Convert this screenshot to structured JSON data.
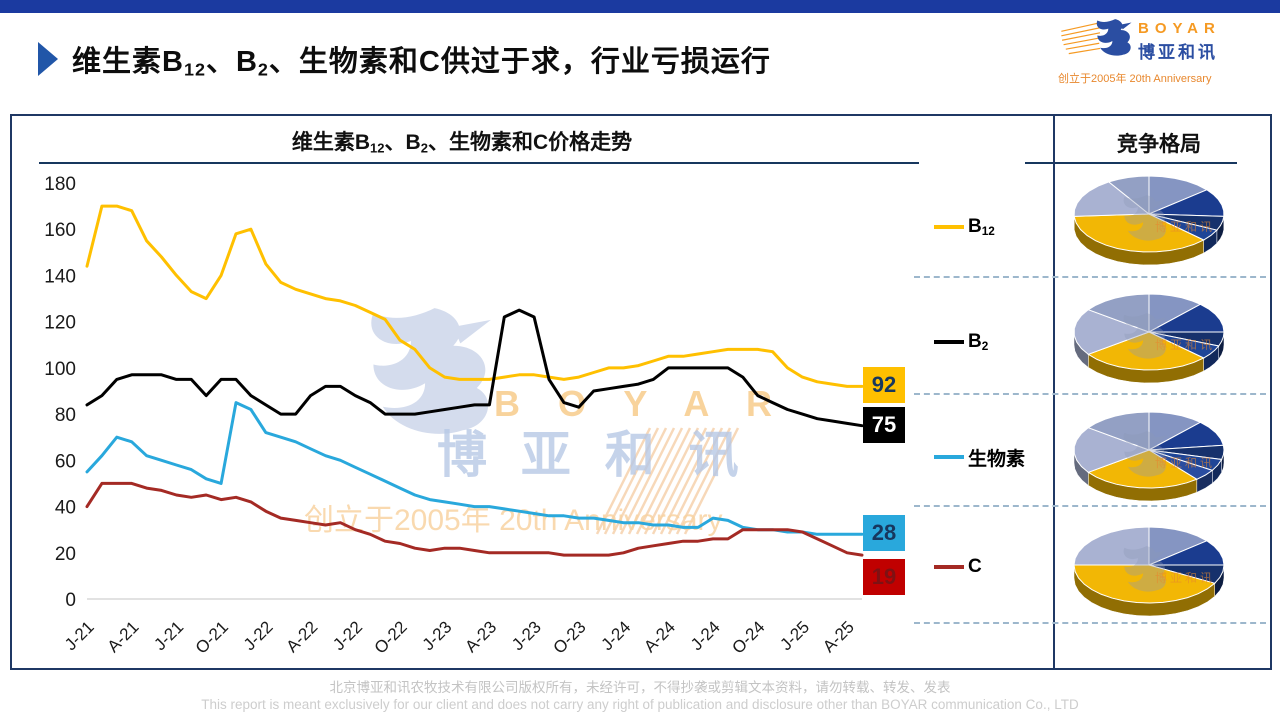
{
  "header": {
    "title_rich": [
      {
        "text": "维生素B"
      },
      {
        "sub": "12"
      },
      {
        "text": "、B"
      },
      {
        "sub": "2"
      },
      {
        "text": "、生物素和C供过于求，行业亏损运行"
      }
    ],
    "logo": {
      "brand_en": "BOYAR",
      "brand_cn": "博亚和讯",
      "anniversary": "创立于2005年 20th Anniversary"
    }
  },
  "panel": {
    "chart_title_rich": [
      {
        "text": "维生素B"
      },
      {
        "sub": "12"
      },
      {
        "text": "、B"
      },
      {
        "sub": "2"
      },
      {
        "text": "、生物素和C价格走势"
      }
    ],
    "competition_title": "竞争格局"
  },
  "legend": [
    {
      "rich": [
        {
          "text": "B"
        },
        {
          "sub": "12"
        }
      ],
      "color": "#FFC000"
    },
    {
      "rich": [
        {
          "text": "B"
        },
        {
          "sub": "2"
        }
      ],
      "color": "#000000"
    },
    {
      "rich": [
        {
          "text": "生物素"
        }
      ],
      "color": "#29A8DC"
    },
    {
      "rich": [
        {
          "text": "C"
        }
      ],
      "color": "#A42A24"
    }
  ],
  "watermark": {
    "brand_en": "B O Y A R",
    "brand_cn": "博 亚 和 讯",
    "anniversary": "创立于2005年 20th Anniversary",
    "pie_mark": "博亚和讯"
  },
  "footer": {
    "line1": "北京博亚和讯农牧技术有限公司版权所有，未经许可，不得抄袭或剪辑文本资料，请勿转载、转发、发表",
    "line2": "This report is meant exclusively for our client and does not carry any right of publication and disclosure other than BOYAR communication Co., LTD"
  },
  "colors": {
    "top_bar": "#1B3AA0",
    "panel_border": "#1F3864",
    "separator_dashed": "#9DB7CC",
    "axis_line": "#D9D9D9"
  },
  "chart_data": [
    {
      "type": "line",
      "title": "维生素B12、B2、生物素和C价格走势",
      "xlabel": "",
      "ylabel": "",
      "ylim": [
        0,
        180
      ],
      "y_ticks": [
        0,
        20,
        40,
        60,
        80,
        100,
        120,
        140,
        160,
        180
      ],
      "x_tick_labels": [
        "J-21",
        "A-21",
        "J-21",
        "O-21",
        "J-22",
        "A-22",
        "J-22",
        "O-22",
        "J-23",
        "A-23",
        "J-23",
        "O-23",
        "J-24",
        "A-24",
        "J-24",
        "O-24",
        "J-25",
        "A-25"
      ],
      "x_note": "monthly points Jan-2021 .. May-2025, ticks every 3 months",
      "grid": false,
      "legend_position": "right",
      "series": [
        {
          "name": "B12",
          "color": "#FFC000",
          "end_label": "92",
          "label_bg": "#FFC000",
          "label_fg": "#17375E",
          "values": [
            144,
            170,
            170,
            168,
            155,
            148,
            140,
            133,
            130,
            140,
            158,
            160,
            145,
            137,
            134,
            132,
            130,
            129,
            127,
            124,
            121,
            112,
            108,
            100,
            96,
            95,
            95,
            95,
            96,
            97,
            97,
            96,
            95,
            96,
            98,
            100,
            100,
            101,
            103,
            105,
            105,
            106,
            107,
            108,
            108,
            108,
            107,
            100,
            96,
            94,
            93,
            92,
            92
          ]
        },
        {
          "name": "B2",
          "color": "#000000",
          "end_label": "75",
          "label_bg": "#000000",
          "label_fg": "#FFFFFF",
          "values": [
            84,
            88,
            95,
            97,
            97,
            97,
            95,
            95,
            88,
            95,
            95,
            88,
            84,
            80,
            80,
            88,
            92,
            92,
            88,
            85,
            80,
            80,
            80,
            81,
            82,
            83,
            84,
            84,
            122,
            125,
            122,
            95,
            85,
            83,
            90,
            91,
            92,
            93,
            95,
            100,
            100,
            100,
            100,
            100,
            96,
            88,
            85,
            82,
            80,
            78,
            77,
            76,
            75
          ]
        },
        {
          "name": "生物素",
          "color": "#29A8DC",
          "end_label": "28",
          "label_bg": "#29A8DC",
          "label_fg": "#17375E",
          "values": [
            55,
            62,
            70,
            68,
            62,
            60,
            58,
            56,
            52,
            50,
            85,
            82,
            72,
            70,
            68,
            65,
            62,
            60,
            57,
            54,
            51,
            48,
            45,
            43,
            42,
            41,
            40,
            40,
            39,
            38,
            37,
            36,
            36,
            35,
            35,
            34,
            33,
            33,
            32,
            32,
            31,
            31,
            35,
            34,
            31,
            30,
            30,
            29,
            29,
            28,
            28,
            28,
            28
          ]
        },
        {
          "name": "C",
          "color": "#A42A24",
          "end_label": "19",
          "label_bg": "#C00000",
          "label_fg": "#7E1113",
          "values": [
            40,
            50,
            50,
            50,
            48,
            47,
            45,
            44,
            45,
            43,
            44,
            42,
            38,
            35,
            34,
            33,
            32,
            33,
            30,
            28,
            25,
            24,
            22,
            21,
            22,
            22,
            21,
            20,
            20,
            20,
            20,
            20,
            19,
            19,
            19,
            19,
            20,
            22,
            23,
            24,
            25,
            25,
            26,
            26,
            30,
            30,
            30,
            30,
            29,
            26,
            23,
            20,
            19
          ]
        }
      ]
    },
    {
      "type": "pie",
      "name": "B12 竞争格局",
      "estimated_shares": true,
      "slices": [
        {
          "value": 14,
          "color": "#8595C2"
        },
        {
          "value": 12,
          "color": "#1B3C8F"
        },
        {
          "value": 6,
          "color": "#16316C"
        },
        {
          "value": 5,
          "color": "#1E4597"
        },
        {
          "value": 37,
          "color": "#F2B705"
        },
        {
          "value": 17,
          "color": "#A9B2D2"
        },
        {
          "value": 9,
          "color": "#93A0C4"
        }
      ]
    },
    {
      "type": "pie",
      "name": "B2 竞争格局",
      "estimated_shares": true,
      "slices": [
        {
          "value": 12,
          "color": "#8595C2"
        },
        {
          "value": 13,
          "color": "#1B3C8F"
        },
        {
          "value": 6,
          "color": "#16316C"
        },
        {
          "value": 6,
          "color": "#1E4597"
        },
        {
          "value": 28,
          "color": "#F2B705"
        },
        {
          "value": 20,
          "color": "#A9B2D2"
        },
        {
          "value": 15,
          "color": "#93A0C4"
        }
      ]
    },
    {
      "type": "pie",
      "name": "生物素 竞争格局",
      "estimated_shares": true,
      "slices": [
        {
          "value": 12,
          "color": "#8595C2"
        },
        {
          "value": 11,
          "color": "#1B3C8F"
        },
        {
          "value": 6,
          "color": "#16316C"
        },
        {
          "value": 5,
          "color": "#1E4597"
        },
        {
          "value": 5,
          "color": "#2A4DA0"
        },
        {
          "value": 26,
          "color": "#F2B705"
        },
        {
          "value": 20,
          "color": "#A9B2D2"
        },
        {
          "value": 15,
          "color": "#93A0C4"
        }
      ]
    },
    {
      "type": "pie",
      "name": "C 竞争格局",
      "estimated_shares": true,
      "slices": [
        {
          "value": 14,
          "color": "#8595C2"
        },
        {
          "value": 11,
          "color": "#1B3C8F"
        },
        {
          "value": 8,
          "color": "#16316C"
        },
        {
          "value": 42,
          "color": "#F2B705"
        },
        {
          "value": 25,
          "color": "#A9B2D2"
        }
      ]
    }
  ]
}
